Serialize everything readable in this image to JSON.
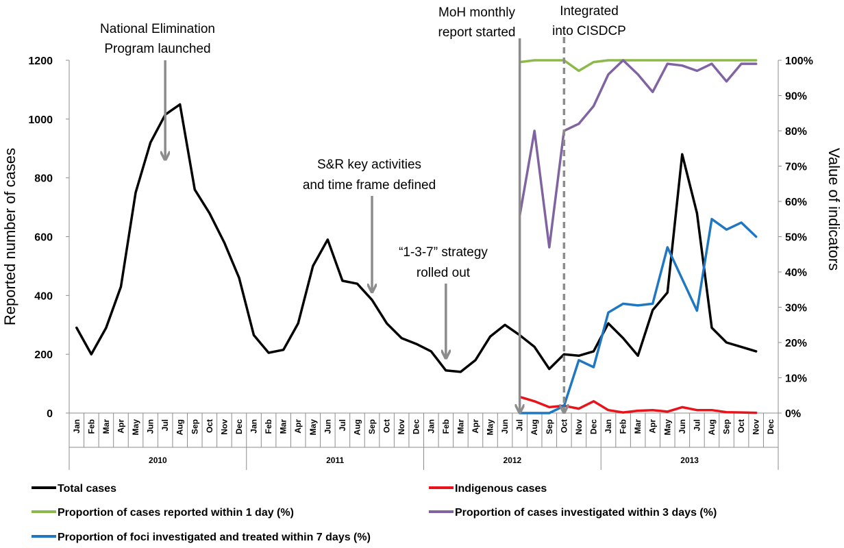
{
  "chart_data": {
    "type": "line",
    "months": [
      "Jan",
      "Feb",
      "Mar",
      "Apr",
      "May",
      "Jun",
      "Jul",
      "Aug",
      "Sep",
      "Oct",
      "Nov",
      "Dec"
    ],
    "years": [
      "2010",
      "2011",
      "2012",
      "2013"
    ],
    "ylabel_left": "Reported number of cases",
    "ylabel_right": "Value of indicators",
    "yticks_left": [
      "0",
      "200",
      "400",
      "600",
      "800",
      "1000",
      "1200"
    ],
    "yticks_right": [
      "0%",
      "10%",
      "20%",
      "30%",
      "40%",
      "50%",
      "60%",
      "70%",
      "80%",
      "90%",
      "100%"
    ],
    "ylim_left": [
      0,
      1200
    ],
    "ylim_right": [
      0,
      100
    ],
    "series": [
      {
        "name": "Total cases",
        "axis": "left",
        "color": "#000000",
        "start_index": 0,
        "values": [
          290,
          200,
          290,
          430,
          750,
          920,
          1015,
          1050,
          760,
          680,
          580,
          460,
          265,
          205,
          215,
          305,
          500,
          590,
          450,
          440,
          385,
          305,
          255,
          235,
          210,
          145,
          140,
          180,
          260,
          300,
          265,
          225,
          150,
          200,
          195,
          210,
          305,
          255,
          195,
          350,
          410,
          880,
          680,
          290,
          240,
          225,
          210
        ]
      },
      {
        "name": "Indigenous cases",
        "axis": "left",
        "color": "#e8141b",
        "start_index": 30,
        "values": [
          55,
          40,
          20,
          25,
          15,
          40,
          10,
          2,
          8,
          10,
          5,
          20,
          10,
          10,
          3,
          2,
          1
        ]
      },
      {
        "name": "Proportion of cases reported within 1 day (%)",
        "axis": "right",
        "color": "#8db84a",
        "start_index": 30,
        "values": [
          99.5,
          100,
          100,
          100,
          97,
          99.5,
          100,
          100,
          100,
          100,
          100,
          100,
          100,
          100,
          100,
          100,
          100
        ]
      },
      {
        "name": "Proportion of cases investigated within 3 days (%)",
        "axis": "right",
        "color": "#8064a2",
        "start_index": 30,
        "values": [
          56,
          80,
          47,
          80,
          82,
          87,
          96,
          100,
          96,
          91,
          99,
          98.5,
          97,
          99,
          94,
          99,
          99
        ]
      },
      {
        "name": "Proportion of foci investigated and treated within 7 days (%)",
        "axis": "right",
        "color": "#1f77c2",
        "start_index": 30,
        "values": [
          0,
          0,
          0,
          2,
          15,
          13,
          28.5,
          31,
          30.5,
          31,
          47,
          38,
          29,
          55,
          52,
          54,
          50
        ]
      }
    ],
    "annotations": [
      {
        "lines": [
          "National Elimination",
          "Program launched"
        ],
        "month_index": 6,
        "arrow_to_value": 860,
        "style": "solid"
      },
      {
        "lines": [
          "S&R key activities",
          "and  time frame defined"
        ],
        "month_index": 20,
        "arrow_to_value": 410,
        "style": "solid"
      },
      {
        "lines": [
          "“1-3-7” strategy",
          "rolled out"
        ],
        "month_index": 25,
        "arrow_to_value": 185,
        "style": "solid"
      },
      {
        "lines": [
          "MoH monthly",
          "report started"
        ],
        "month_index": 30,
        "arrow_to_value": 0,
        "style": "solid"
      },
      {
        "lines": [
          "Integrated",
          "into CISDCP"
        ],
        "month_index": 33,
        "arrow_to_value": 0,
        "style": "dashed"
      }
    ],
    "legend": [
      {
        "label": "Total cases",
        "color": "#000000"
      },
      {
        "label": "Indigenous cases",
        "color": "#e8141b"
      },
      {
        "label": "Proportion of cases reported within 1 day (%)",
        "color": "#8db84a"
      },
      {
        "label": "Proportion of cases investigated within 3 days (%)",
        "color": "#8064a2"
      },
      {
        "label": "Proportion of foci investigated and treated within 7 days (%)",
        "color": "#1f77c2"
      }
    ],
    "legend_position": "bottom"
  }
}
